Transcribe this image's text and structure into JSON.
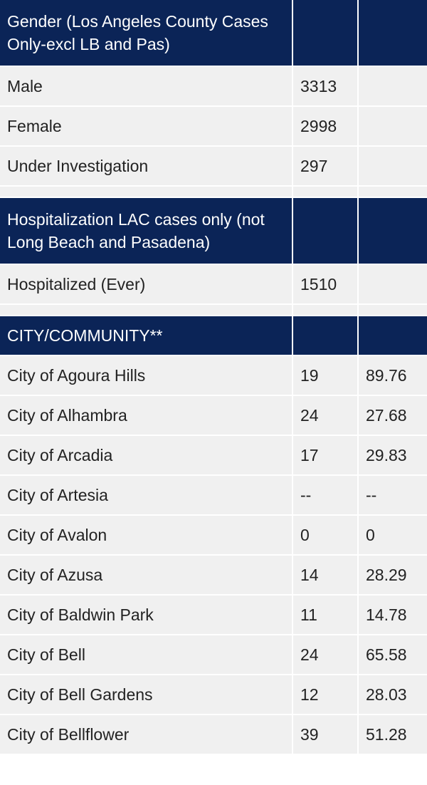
{
  "sections": [
    {
      "header": "Gender (Los Angeles County Cases Only-excl LB and Pas)",
      "header_size": "tall",
      "rows": [
        {
          "label": "Male",
          "count": "3313",
          "rate": ""
        },
        {
          "label": "Female",
          "count": "2998",
          "rate": ""
        },
        {
          "label": "Under Investigation",
          "count": "297",
          "rate": ""
        }
      ]
    },
    {
      "header": "Hospitalization LAC cases only (not Long Beach and Pasadena)",
      "header_size": "tall",
      "rows": [
        {
          "label": "Hospitalized (Ever)",
          "count": "1510",
          "rate": ""
        }
      ]
    },
    {
      "header": "CITY/COMMUNITY**",
      "header_size": "short",
      "rows": [
        {
          "label": "City of Agoura Hills",
          "count": "19",
          "rate": "89.76"
        },
        {
          "label": "City of Alhambra",
          "count": "24",
          "rate": "27.68"
        },
        {
          "label": "City of Arcadia",
          "count": "17",
          "rate": "29.83"
        },
        {
          "label": "City of Artesia",
          "count": "--",
          "rate": "--"
        },
        {
          "label": "City of Avalon",
          "count": "0",
          "rate": "0"
        },
        {
          "label": "City of Azusa",
          "count": "14",
          "rate": "28.29"
        },
        {
          "label": "City of Baldwin Park",
          "count": "11",
          "rate": "14.78"
        },
        {
          "label": "City of Bell",
          "count": "24",
          "rate": "65.58"
        },
        {
          "label": "City of Bell Gardens",
          "count": "12",
          "rate": "28.03"
        },
        {
          "label": "City of Bellflower",
          "count": "39",
          "rate": "51.28"
        }
      ]
    }
  ]
}
